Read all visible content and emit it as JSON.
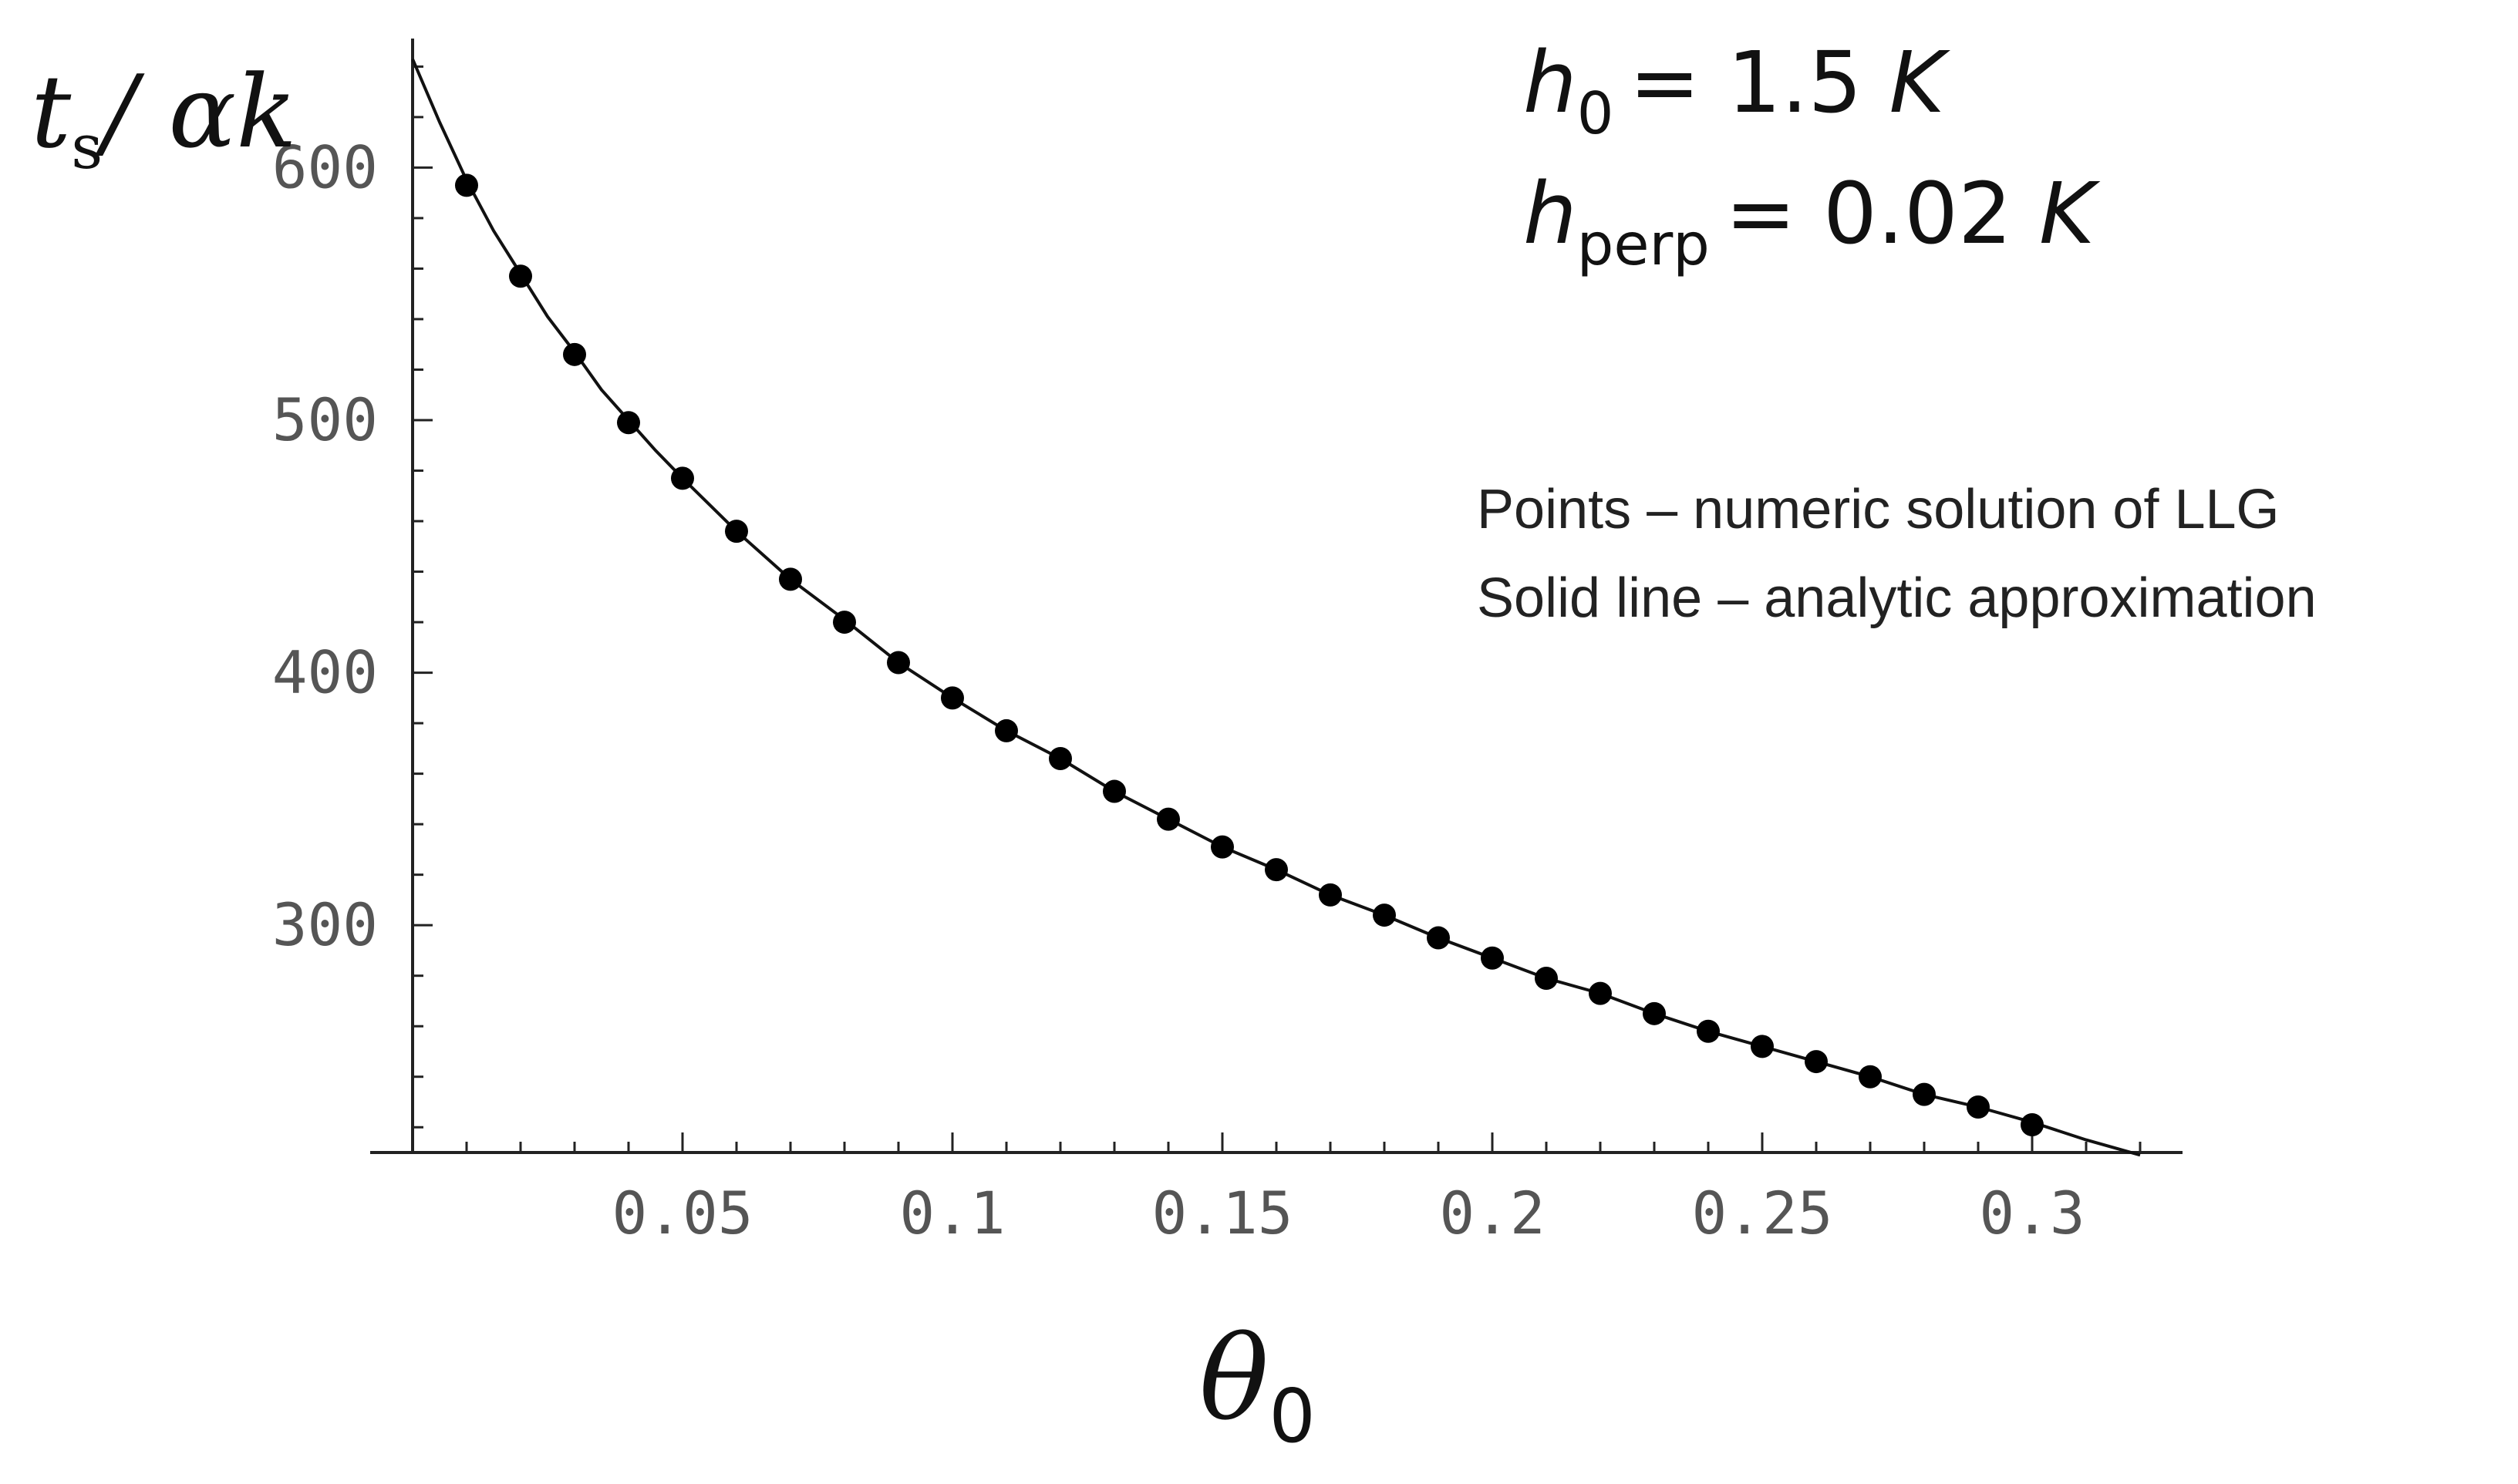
{
  "chart_data": {
    "type": "scatter",
    "xlabel": {
      "symbol": "θ",
      "subscript": "0"
    },
    "ylabel": {
      "t": "t",
      "sub": "s",
      "rest": "/ αk"
    },
    "xlim": [
      0,
      0.32
    ],
    "ylim": [
      210,
      645
    ],
    "x_ticks": [
      0.05,
      0.1,
      0.15,
      0.2,
      0.25,
      0.3
    ],
    "x_tick_labels": [
      "0.05",
      "0.1",
      "0.15",
      "0.2",
      "0.25",
      "0.3"
    ],
    "y_ticks": [
      300,
      400,
      500,
      600
    ],
    "y_tick_labels": [
      "300",
      "400",
      "500",
      "600"
    ],
    "grid": false,
    "params": [
      {
        "symbol": "h",
        "sub": "0",
        "value": "= 1.5 ",
        "unit": "K"
      },
      {
        "symbol": "h",
        "sub": "perp",
        "value": "= 0.02 ",
        "unit": "K"
      }
    ],
    "legend": {
      "placement": "right",
      "entries": [
        "Points – numeric solution of LLG",
        "Solid line – analytic approximation"
      ]
    },
    "series": [
      {
        "style": "line",
        "x": [
          0.0,
          0.005,
          0.01,
          0.015,
          0.02,
          0.025,
          0.03,
          0.035,
          0.04,
          0.045,
          0.05,
          0.06,
          0.07,
          0.08,
          0.09,
          0.1,
          0.11,
          0.12,
          0.13,
          0.14,
          0.15,
          0.16,
          0.17,
          0.18,
          0.19,
          0.2,
          0.21,
          0.22,
          0.23,
          0.24,
          0.25,
          0.26,
          0.27,
          0.28,
          0.29,
          0.3,
          0.31,
          0.32
        ],
        "y": [
          643,
          618,
          595,
          575,
          558,
          541,
          527,
          512,
          500,
          488,
          477,
          456,
          437,
          421,
          404,
          390,
          377,
          366,
          353,
          342,
          331,
          322,
          312,
          304,
          295,
          287,
          279,
          273,
          265,
          258,
          252,
          246,
          240,
          233,
          228,
          222,
          215,
          209
        ]
      },
      {
        "style": "points",
        "x": [
          0.01,
          0.02,
          0.03,
          0.04,
          0.05,
          0.06,
          0.07,
          0.08,
          0.09,
          0.1,
          0.11,
          0.12,
          0.13,
          0.14,
          0.15,
          0.16,
          0.17,
          0.18,
          0.19,
          0.2,
          0.21,
          0.22,
          0.23,
          0.24,
          0.25,
          0.26,
          0.27,
          0.28,
          0.29,
          0.3
        ],
        "y": [
          593,
          557,
          526,
          499,
          477,
          456,
          437,
          420,
          404,
          390,
          377,
          366,
          353,
          342,
          331,
          322,
          312,
          304,
          295,
          287,
          279,
          273,
          265,
          258,
          252,
          246,
          240,
          233,
          228,
          221
        ]
      }
    ]
  }
}
